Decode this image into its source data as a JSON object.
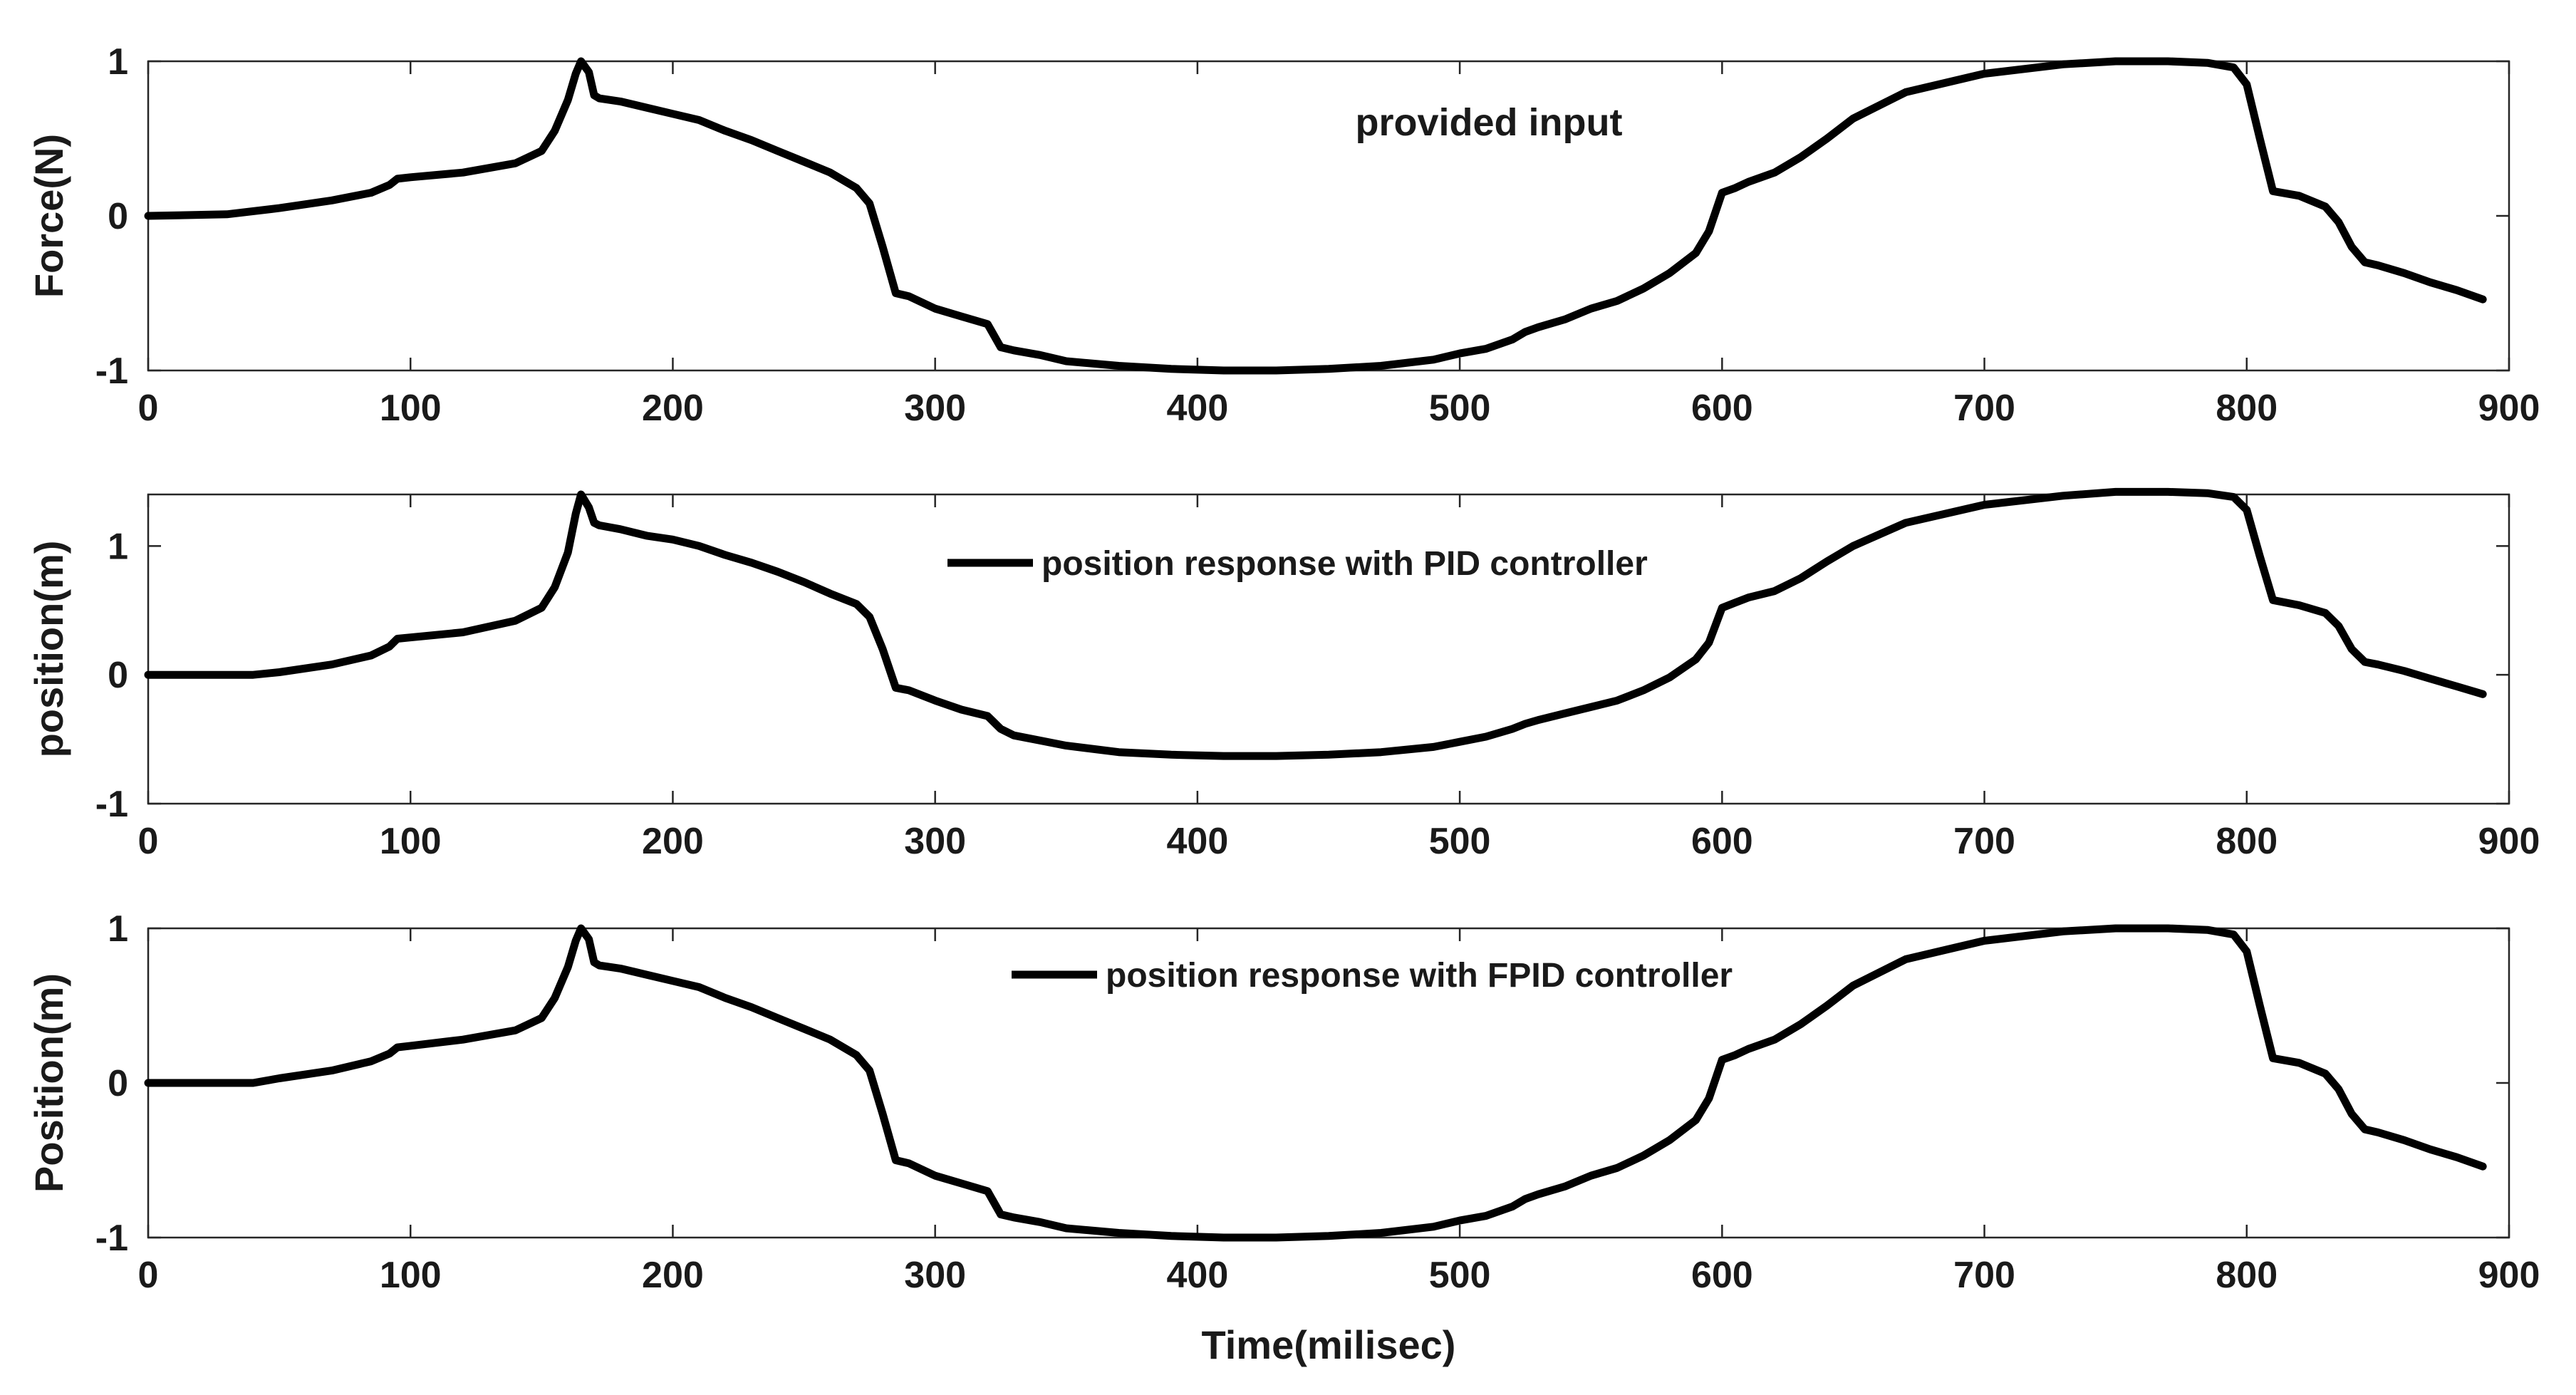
{
  "chart_data": [
    {
      "type": "line",
      "title": "",
      "xlabel": "",
      "ylabel": "Force(N)",
      "xlim": [
        0,
        900
      ],
      "ylim": [
        -1,
        1
      ],
      "xticks": [
        0,
        100,
        200,
        300,
        400,
        500,
        600,
        700,
        800,
        900
      ],
      "yticks": [
        -1,
        0,
        1
      ],
      "xtick_labels": [
        "0",
        "100",
        "200",
        "300",
        "400",
        "500",
        "600",
        "700",
        "800",
        "900"
      ],
      "ytick_labels": [
        "-1",
        "0",
        "1"
      ],
      "grid": false,
      "annotation": "provided input",
      "legend": null,
      "series": [
        {
          "color": "#000000",
          "x": [
            0,
            30,
            50,
            70,
            85,
            92,
            95,
            100,
            120,
            140,
            150,
            155,
            160,
            163,
            165,
            168,
            170,
            172,
            180,
            190,
            200,
            210,
            220,
            230,
            240,
            250,
            260,
            270,
            275,
            280,
            285,
            290,
            300,
            310,
            320,
            325,
            330,
            340,
            350,
            370,
            390,
            410,
            430,
            450,
            470,
            490,
            500,
            510,
            520,
            525,
            530,
            540,
            550,
            560,
            570,
            580,
            590,
            595,
            600,
            605,
            610,
            620,
            630,
            640,
            650,
            670,
            700,
            730,
            750,
            770,
            785,
            795,
            800,
            805,
            810,
            820,
            830,
            835,
            840,
            845,
            850,
            860,
            870,
            880,
            890
          ],
          "y": [
            0,
            0.01,
            0.05,
            0.1,
            0.15,
            0.2,
            0.24,
            0.25,
            0.28,
            0.34,
            0.42,
            0.55,
            0.75,
            0.92,
            1.0,
            0.93,
            0.78,
            0.76,
            0.74,
            0.7,
            0.66,
            0.62,
            0.55,
            0.49,
            0.42,
            0.35,
            0.28,
            0.18,
            0.08,
            -0.2,
            -0.5,
            -0.52,
            -0.6,
            -0.65,
            -0.7,
            -0.85,
            -0.87,
            -0.9,
            -0.94,
            -0.97,
            -0.99,
            -1.0,
            -1.0,
            -0.99,
            -0.97,
            -0.93,
            -0.89,
            -0.86,
            -0.8,
            -0.75,
            -0.72,
            -0.67,
            -0.6,
            -0.55,
            -0.47,
            -0.37,
            -0.24,
            -0.1,
            0.15,
            0.18,
            0.22,
            0.28,
            0.38,
            0.5,
            0.63,
            0.8,
            0.92,
            0.98,
            1.0,
            1.0,
            0.99,
            0.96,
            0.85,
            0.5,
            0.16,
            0.13,
            0.06,
            -0.04,
            -0.2,
            -0.3,
            -0.32,
            -0.37,
            -0.43,
            -0.48,
            -0.54
          ]
        }
      ]
    },
    {
      "type": "line",
      "title": "",
      "xlabel": "",
      "ylabel": "position(m)",
      "xlim": [
        0,
        900
      ],
      "ylim": [
        -1,
        1.4
      ],
      "xticks": [
        0,
        100,
        200,
        300,
        400,
        500,
        600,
        700,
        800,
        900
      ],
      "yticks": [
        -1,
        0,
        1
      ],
      "xtick_labels": [
        "0",
        "100",
        "200",
        "300",
        "400",
        "500",
        "600",
        "700",
        "800",
        "900"
      ],
      "ytick_labels": [
        "-1",
        "0",
        "1"
      ],
      "grid": false,
      "annotation": "",
      "legend": {
        "location": "top-center",
        "entries": [
          "position response with PID controller"
        ]
      },
      "series": [
        {
          "name": "position response with PID controller",
          "color": "#000000",
          "x": [
            0,
            40,
            50,
            70,
            85,
            92,
            95,
            100,
            120,
            140,
            150,
            155,
            160,
            163,
            165,
            168,
            170,
            172,
            180,
            190,
            200,
            210,
            220,
            230,
            240,
            250,
            260,
            270,
            275,
            280,
            285,
            290,
            300,
            310,
            320,
            325,
            330,
            340,
            350,
            370,
            390,
            410,
            430,
            450,
            470,
            490,
            500,
            510,
            520,
            525,
            530,
            540,
            550,
            560,
            570,
            580,
            590,
            595,
            600,
            605,
            610,
            620,
            630,
            640,
            650,
            670,
            700,
            730,
            750,
            770,
            785,
            795,
            800,
            805,
            810,
            820,
            830,
            835,
            840,
            845,
            850,
            860,
            870,
            880,
            890
          ],
          "y": [
            0,
            0,
            0.02,
            0.08,
            0.15,
            0.22,
            0.28,
            0.29,
            0.33,
            0.42,
            0.52,
            0.68,
            0.95,
            1.25,
            1.4,
            1.3,
            1.18,
            1.16,
            1.13,
            1.08,
            1.05,
            1.0,
            0.93,
            0.87,
            0.8,
            0.72,
            0.63,
            0.55,
            0.45,
            0.2,
            -0.1,
            -0.12,
            -0.2,
            -0.27,
            -0.32,
            -0.42,
            -0.47,
            -0.51,
            -0.55,
            -0.6,
            -0.62,
            -0.63,
            -0.63,
            -0.62,
            -0.6,
            -0.56,
            -0.52,
            -0.48,
            -0.42,
            -0.38,
            -0.35,
            -0.3,
            -0.25,
            -0.2,
            -0.12,
            -0.02,
            0.12,
            0.25,
            0.52,
            0.56,
            0.6,
            0.65,
            0.75,
            0.88,
            1.0,
            1.18,
            1.32,
            1.39,
            1.42,
            1.42,
            1.41,
            1.38,
            1.28,
            0.92,
            0.58,
            0.54,
            0.48,
            0.38,
            0.2,
            0.1,
            0.08,
            0.03,
            -0.03,
            -0.09,
            -0.15
          ]
        }
      ]
    },
    {
      "type": "line",
      "title": "",
      "xlabel": "Time(milisec)",
      "ylabel": "Position(m)",
      "xlim": [
        0,
        900
      ],
      "ylim": [
        -1,
        1
      ],
      "xticks": [
        0,
        100,
        200,
        300,
        400,
        500,
        600,
        700,
        800,
        900
      ],
      "yticks": [
        -1,
        0,
        1
      ],
      "xtick_labels": [
        "0",
        "100",
        "200",
        "300",
        "400",
        "500",
        "600",
        "700",
        "800",
        "900"
      ],
      "ytick_labels": [
        "-1",
        "0",
        "1"
      ],
      "grid": false,
      "annotation": "",
      "legend": {
        "location": "top-center",
        "entries": [
          "position response with FPID controller"
        ]
      },
      "series": [
        {
          "name": "position response with FPID controller",
          "color": "#000000",
          "x": [
            0,
            40,
            50,
            70,
            85,
            92,
            95,
            100,
            120,
            140,
            150,
            155,
            160,
            163,
            165,
            168,
            170,
            172,
            180,
            190,
            200,
            210,
            220,
            230,
            240,
            250,
            260,
            270,
            275,
            280,
            285,
            290,
            300,
            310,
            320,
            325,
            330,
            340,
            350,
            370,
            390,
            410,
            430,
            450,
            470,
            490,
            500,
            510,
            520,
            525,
            530,
            540,
            550,
            560,
            570,
            580,
            590,
            595,
            600,
            605,
            610,
            620,
            630,
            640,
            650,
            670,
            700,
            730,
            750,
            770,
            785,
            795,
            800,
            805,
            810,
            820,
            830,
            835,
            840,
            845,
            850,
            860,
            870,
            880,
            890
          ],
          "y": [
            0,
            0,
            0.03,
            0.08,
            0.14,
            0.19,
            0.23,
            0.24,
            0.28,
            0.34,
            0.42,
            0.55,
            0.75,
            0.92,
            1.0,
            0.93,
            0.78,
            0.76,
            0.74,
            0.7,
            0.66,
            0.62,
            0.55,
            0.49,
            0.42,
            0.35,
            0.28,
            0.18,
            0.08,
            -0.2,
            -0.5,
            -0.52,
            -0.6,
            -0.65,
            -0.7,
            -0.85,
            -0.87,
            -0.9,
            -0.94,
            -0.97,
            -0.99,
            -1.0,
            -1.0,
            -0.99,
            -0.97,
            -0.93,
            -0.89,
            -0.86,
            -0.8,
            -0.75,
            -0.72,
            -0.67,
            -0.6,
            -0.55,
            -0.47,
            -0.37,
            -0.24,
            -0.1,
            0.15,
            0.18,
            0.22,
            0.28,
            0.38,
            0.5,
            0.63,
            0.8,
            0.92,
            0.98,
            1.0,
            1.0,
            0.99,
            0.96,
            0.85,
            0.5,
            0.16,
            0.13,
            0.06,
            -0.04,
            -0.2,
            -0.3,
            -0.32,
            -0.37,
            -0.43,
            -0.48,
            -0.54
          ]
        }
      ]
    }
  ]
}
